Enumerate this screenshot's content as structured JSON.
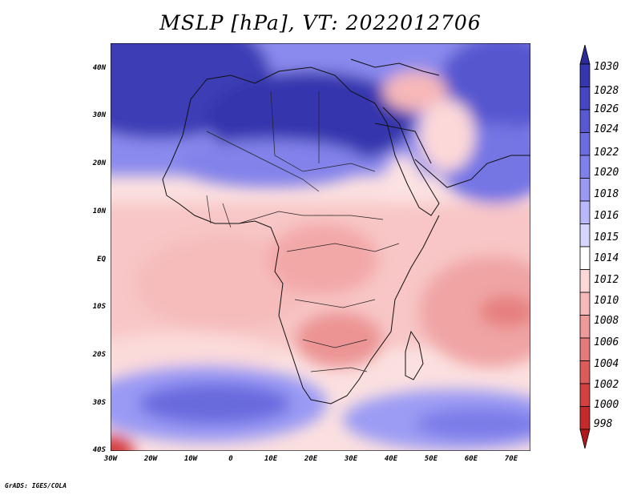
{
  "title": "MSLP [hPa], VT: 2022012706",
  "footer": "GrADS: IGES/COLA",
  "y_axis_labels": [
    "40N",
    "30N",
    "20N",
    "10N",
    "EQ",
    "10S",
    "20S",
    "30S",
    "40S"
  ],
  "x_axis_labels": [
    "30W",
    "20W",
    "10W",
    "0",
    "10E",
    "20E",
    "30E",
    "40E",
    "50E",
    "60E",
    "70E"
  ],
  "colorbar": {
    "levels": [
      "1030",
      "1028",
      "1026",
      "1024",
      "1022",
      "1020",
      "1018",
      "1016",
      "1015",
      "1014",
      "1012",
      "1010",
      "1008",
      "1006",
      "1004",
      "1002",
      "1000",
      "998"
    ],
    "colors": [
      "#2a2a99",
      "#3636b0",
      "#4646c4",
      "#5858d2",
      "#6c6ce0",
      "#8080ec",
      "#9a9af4",
      "#b8b8fa",
      "#d6d6fd",
      "#ffffff",
      "#fcd8d8",
      "#f6b8b8",
      "#ee9a9a",
      "#e47a7a",
      "#dc5c5c",
      "#d44040",
      "#c42a2a",
      "#b01a1a"
    ]
  },
  "chart_data": {
    "type": "heatmap",
    "title": "MSLP [hPa], VT: 2022012706",
    "variable": "MSLP",
    "units": "hPa",
    "valid_time": "2022012706",
    "lon_range": [
      "30W",
      "75E"
    ],
    "lat_range": [
      "40S",
      "45N"
    ],
    "contour_levels_hPa": [
      998,
      1000,
      1002,
      1004,
      1006,
      1008,
      1010,
      1012,
      1014,
      1015,
      1016,
      1018,
      1020,
      1022,
      1024,
      1026,
      1028,
      1030
    ]
  }
}
